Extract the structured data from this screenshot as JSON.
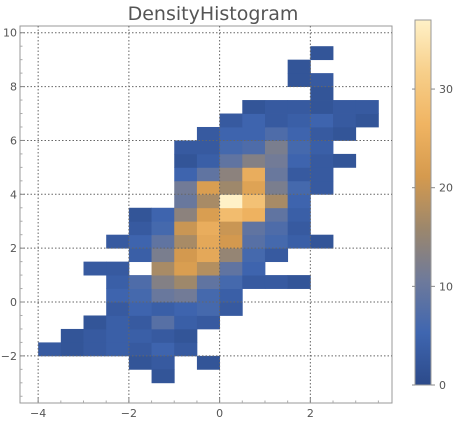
{
  "chart_data": {
    "type": "heatmap",
    "title": "DensityHistogram",
    "xlabel": "",
    "ylabel": "",
    "xlim": [
      -4.4,
      3.8
    ],
    "ylim": [
      -3.75,
      10.25
    ],
    "bin_width_x": 0.5,
    "bin_height_y": 0.5,
    "x_ticks": [
      -4,
      -2,
      0,
      2
    ],
    "y_ticks": [
      -2,
      0,
      2,
      4,
      6,
      8,
      10
    ],
    "grid": "dotted lines at major ticks",
    "colorbar": {
      "placement": "right",
      "min": 0,
      "max": 37,
      "ticks": [
        0,
        10,
        20,
        30
      ],
      "colors": [
        "#2c4a8a",
        "#3f66b0",
        "#6e7a9b",
        "#9c876c",
        "#d59a4e",
        "#f0b462",
        "#f7cf8a",
        "#fff1c7"
      ]
    },
    "cells": [
      {
        "x": -4,
        "y": -2,
        "count": 3
      },
      {
        "x": -3.5,
        "y": -2,
        "count": 2
      },
      {
        "x": -3,
        "y": -2,
        "count": 3
      },
      {
        "x": -2.5,
        "y": -2,
        "count": 4
      },
      {
        "x": -2,
        "y": -2,
        "count": 3
      },
      {
        "x": -1.5,
        "y": -2,
        "count": 5
      },
      {
        "x": -1,
        "y": -2,
        "count": 3
      },
      {
        "x": -2,
        "y": -2.5,
        "count": 2
      },
      {
        "x": -1.5,
        "y": -2.5,
        "count": 3
      },
      {
        "x": -0.5,
        "y": -2.5,
        "count": 2
      },
      {
        "x": -1.5,
        "y": -3,
        "count": 2
      },
      {
        "x": -3.5,
        "y": -1.5,
        "count": 2
      },
      {
        "x": -3,
        "y": -1.5,
        "count": 3
      },
      {
        "x": -2.5,
        "y": -1.5,
        "count": 4
      },
      {
        "x": -2,
        "y": -1.5,
        "count": 4
      },
      {
        "x": -1.5,
        "y": -1.5,
        "count": 3
      },
      {
        "x": -1,
        "y": -1.5,
        "count": 2
      },
      {
        "x": -3,
        "y": -1,
        "count": 2
      },
      {
        "x": -2.5,
        "y": -1,
        "count": 4
      },
      {
        "x": -2,
        "y": -1,
        "count": 3
      },
      {
        "x": -1.5,
        "y": -1,
        "count": 8
      },
      {
        "x": -1,
        "y": -1,
        "count": 4
      },
      {
        "x": -0.5,
        "y": -1,
        "count": 3
      },
      {
        "x": -2.5,
        "y": -0.5,
        "count": 3
      },
      {
        "x": -2,
        "y": -0.5,
        "count": 5
      },
      {
        "x": -1.5,
        "y": -0.5,
        "count": 4
      },
      {
        "x": -1,
        "y": -0.5,
        "count": 5
      },
      {
        "x": -0.5,
        "y": -0.5,
        "count": 6
      },
      {
        "x": 0,
        "y": -0.5,
        "count": 3
      },
      {
        "x": -2.5,
        "y": 0,
        "count": 5
      },
      {
        "x": -2,
        "y": 0,
        "count": 6
      },
      {
        "x": -1.5,
        "y": 0,
        "count": 10
      },
      {
        "x": -1,
        "y": 0,
        "count": 11
      },
      {
        "x": -0.5,
        "y": 0,
        "count": 6
      },
      {
        "x": 0,
        "y": 0,
        "count": 4
      },
      {
        "x": -2.5,
        "y": 0.5,
        "count": 4
      },
      {
        "x": -2,
        "y": 0.5,
        "count": 7
      },
      {
        "x": -1.5,
        "y": 0.5,
        "count": 13
      },
      {
        "x": -1,
        "y": 0.5,
        "count": 16
      },
      {
        "x": -0.5,
        "y": 0.5,
        "count": 9
      },
      {
        "x": 0,
        "y": 0.5,
        "count": 6
      },
      {
        "x": 0.5,
        "y": 0.5,
        "count": 3
      },
      {
        "x": 1,
        "y": 0.5,
        "count": 3
      },
      {
        "x": 1.5,
        "y": 0.5,
        "count": 2
      },
      {
        "x": -3,
        "y": 1,
        "count": 3
      },
      {
        "x": -2.5,
        "y": 1,
        "count": 3
      },
      {
        "x": -1.5,
        "y": 1,
        "count": 17
      },
      {
        "x": -1,
        "y": 1,
        "count": 22
      },
      {
        "x": -0.5,
        "y": 1,
        "count": 18
      },
      {
        "x": 0,
        "y": 1,
        "count": 9
      },
      {
        "x": 0.5,
        "y": 1,
        "count": 5
      },
      {
        "x": -2,
        "y": 1.5,
        "count": 4
      },
      {
        "x": -1.5,
        "y": 1.5,
        "count": 12
      },
      {
        "x": -1,
        "y": 1.5,
        "count": 21
      },
      {
        "x": -0.5,
        "y": 1.5,
        "count": 24
      },
      {
        "x": 0,
        "y": 1.5,
        "count": 15
      },
      {
        "x": 0.5,
        "y": 1.5,
        "count": 6
      },
      {
        "x": 1,
        "y": 1.5,
        "count": 3
      },
      {
        "x": -2.5,
        "y": 2,
        "count": 3
      },
      {
        "x": -2,
        "y": 2,
        "count": 5
      },
      {
        "x": -1.5,
        "y": 2,
        "count": 9
      },
      {
        "x": -1,
        "y": 2,
        "count": 17
      },
      {
        "x": -0.5,
        "y": 2,
        "count": 24
      },
      {
        "x": 0,
        "y": 2,
        "count": 21
      },
      {
        "x": 0.5,
        "y": 2,
        "count": 8
      },
      {
        "x": 1,
        "y": 2,
        "count": 6
      },
      {
        "x": 1.5,
        "y": 2,
        "count": 4
      },
      {
        "x": 2,
        "y": 2,
        "count": 2
      },
      {
        "x": -2,
        "y": 2.5,
        "count": 3
      },
      {
        "x": -1.5,
        "y": 2.5,
        "count": 6
      },
      {
        "x": -1,
        "y": 2.5,
        "count": 20
      },
      {
        "x": -0.5,
        "y": 2.5,
        "count": 25
      },
      {
        "x": 0,
        "y": 2.5,
        "count": 20
      },
      {
        "x": 0.5,
        "y": 2.5,
        "count": 9
      },
      {
        "x": 1,
        "y": 2.5,
        "count": 7
      },
      {
        "x": 1.5,
        "y": 2.5,
        "count": 3
      },
      {
        "x": -2,
        "y": 3,
        "count": 2
      },
      {
        "x": -1.5,
        "y": 3,
        "count": 5
      },
      {
        "x": -1,
        "y": 3,
        "count": 14
      },
      {
        "x": -0.5,
        "y": 3,
        "count": 22
      },
      {
        "x": 0,
        "y": 3,
        "count": 28
      },
      {
        "x": 0.5,
        "y": 3,
        "count": 26
      },
      {
        "x": 1,
        "y": 3,
        "count": 9
      },
      {
        "x": 1.5,
        "y": 3,
        "count": 4
      },
      {
        "x": -1,
        "y": 3.5,
        "count": 10
      },
      {
        "x": -0.5,
        "y": 3.5,
        "count": 17
      },
      {
        "x": 0,
        "y": 3.5,
        "count": 37
      },
      {
        "x": 0.5,
        "y": 3.5,
        "count": 29
      },
      {
        "x": 1,
        "y": 3.5,
        "count": 17
      },
      {
        "x": 1.5,
        "y": 3.5,
        "count": 5
      },
      {
        "x": -1,
        "y": 4,
        "count": 11
      },
      {
        "x": -0.5,
        "y": 4,
        "count": 22
      },
      {
        "x": 0,
        "y": 4,
        "count": 16
      },
      {
        "x": 0.5,
        "y": 4,
        "count": 23
      },
      {
        "x": 1,
        "y": 4,
        "count": 12
      },
      {
        "x": 1.5,
        "y": 4,
        "count": 6
      },
      {
        "x": 2,
        "y": 4,
        "count": 3
      },
      {
        "x": -1,
        "y": 4.5,
        "count": 5
      },
      {
        "x": -0.5,
        "y": 4.5,
        "count": 9
      },
      {
        "x": 0,
        "y": 4.5,
        "count": 14
      },
      {
        "x": 0.5,
        "y": 4.5,
        "count": 25
      },
      {
        "x": 1,
        "y": 4.5,
        "count": 10
      },
      {
        "x": 1.5,
        "y": 4.5,
        "count": 3
      },
      {
        "x": 2,
        "y": 4.5,
        "count": 3
      },
      {
        "x": -1,
        "y": 5,
        "count": 2
      },
      {
        "x": -0.5,
        "y": 5,
        "count": 4
      },
      {
        "x": 0,
        "y": 5,
        "count": 9
      },
      {
        "x": 0.5,
        "y": 5,
        "count": 13
      },
      {
        "x": 1,
        "y": 5,
        "count": 11
      },
      {
        "x": 1.5,
        "y": 5,
        "count": 5
      },
      {
        "x": 2,
        "y": 5,
        "count": 3
      },
      {
        "x": 2.5,
        "y": 5,
        "count": 2
      },
      {
        "x": -1,
        "y": 5.5,
        "count": 3
      },
      {
        "x": -0.5,
        "y": 5.5,
        "count": 3
      },
      {
        "x": 0,
        "y": 5.5,
        "count": 6
      },
      {
        "x": 0.5,
        "y": 5.5,
        "count": 7
      },
      {
        "x": 1,
        "y": 5.5,
        "count": 12
      },
      {
        "x": 1.5,
        "y": 5.5,
        "count": 6
      },
      {
        "x": 2,
        "y": 5.5,
        "count": 4
      },
      {
        "x": -0.5,
        "y": 6,
        "count": 3
      },
      {
        "x": 0,
        "y": 6,
        "count": 5
      },
      {
        "x": 0.5,
        "y": 6,
        "count": 5
      },
      {
        "x": 1,
        "y": 6,
        "count": 7
      },
      {
        "x": 1.5,
        "y": 6,
        "count": 5
      },
      {
        "x": 2,
        "y": 6,
        "count": 3
      },
      {
        "x": 2.5,
        "y": 6,
        "count": 2
      },
      {
        "x": 0,
        "y": 6.5,
        "count": 3
      },
      {
        "x": 0.5,
        "y": 6.5,
        "count": 5
      },
      {
        "x": 1,
        "y": 6.5,
        "count": 3
      },
      {
        "x": 1.5,
        "y": 6.5,
        "count": 4
      },
      {
        "x": 2,
        "y": 6.5,
        "count": 5
      },
      {
        "x": 2.5,
        "y": 6.5,
        "count": 3
      },
      {
        "x": 3,
        "y": 6.5,
        "count": 2
      },
      {
        "x": 0.5,
        "y": 7,
        "count": 2
      },
      {
        "x": 1,
        "y": 7,
        "count": 3
      },
      {
        "x": 1.5,
        "y": 7,
        "count": 3
      },
      {
        "x": 2,
        "y": 7,
        "count": 2
      },
      {
        "x": 2.5,
        "y": 7,
        "count": 3
      },
      {
        "x": 3,
        "y": 7,
        "count": 3
      },
      {
        "x": 2,
        "y": 7.5,
        "count": 2
      },
      {
        "x": 1.5,
        "y": 8,
        "count": 2
      },
      {
        "x": 2,
        "y": 8,
        "count": 3
      },
      {
        "x": 1.5,
        "y": 8.5,
        "count": 2
      },
      {
        "x": 2,
        "y": 9,
        "count": 2
      }
    ]
  }
}
